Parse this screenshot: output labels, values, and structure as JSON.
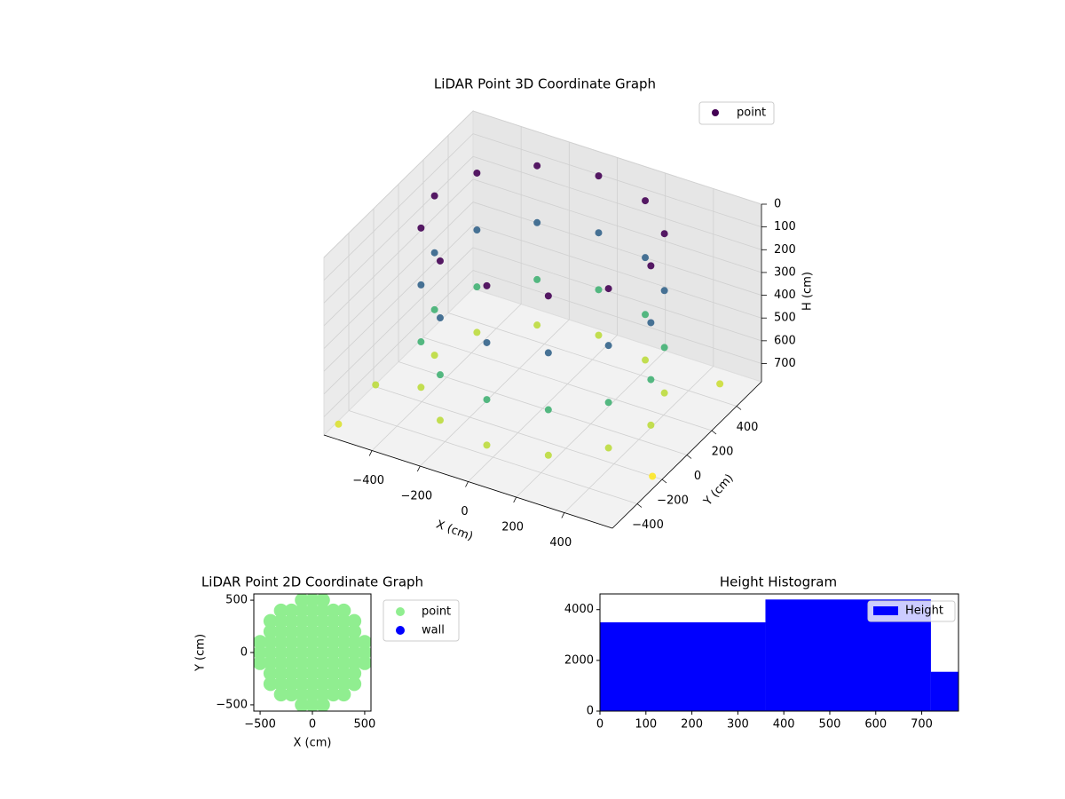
{
  "chart_data": [
    {
      "type": "scatter3d",
      "title": "LiDAR Point 3D Coordinate Graph",
      "xlabel": "X (cm)",
      "ylabel": "Y (cm)",
      "zlabel": "H (cm)",
      "xlim": [
        -600,
        600
      ],
      "ylim": [
        -600,
        600
      ],
      "zlim": [
        0,
        780
      ],
      "zinverted": true,
      "xticks": [
        {
          "value": -400,
          "label": "−400"
        },
        {
          "value": -200,
          "label": "−200"
        },
        0,
        200,
        400
      ],
      "yticks": [
        {
          "value": -400,
          "label": "−400"
        },
        {
          "value": -200,
          "label": "−200"
        },
        0,
        200,
        400
      ],
      "zticks": [
        0,
        100,
        200,
        300,
        400,
        500,
        600,
        700
      ],
      "legend": "upper right",
      "series": [
        {
          "name": "point",
          "color": "#440154",
          "colormap": "viridis",
          "x": [
            450,
            390,
            225,
            0,
            -225,
            -390,
            -450,
            -390,
            -225,
            0,
            225,
            390,
            450,
            390,
            225,
            0,
            -225,
            -390,
            -450,
            -390,
            -225,
            0,
            225,
            390,
            450,
            390,
            225,
            0,
            -225,
            -390,
            -450,
            -390,
            -225,
            0,
            225,
            390,
            450,
            390,
            225,
            0,
            -225,
            -390,
            -450,
            -390,
            -225,
            0,
            225,
            390,
            -560,
            -540,
            520,
            560
          ],
          "y": [
            0,
            225,
            390,
            450,
            390,
            225,
            0,
            -225,
            -390,
            -450,
            -390,
            -225,
            0,
            225,
            390,
            450,
            390,
            225,
            0,
            -225,
            -390,
            -450,
            -390,
            -225,
            0,
            225,
            390,
            450,
            390,
            225,
            0,
            -225,
            -390,
            -450,
            -390,
            -225,
            0,
            225,
            390,
            450,
            390,
            225,
            0,
            -225,
            -390,
            -450,
            -390,
            -225,
            -560,
            -300,
            420,
            -200
          ],
          "h": [
            700,
            700,
            700,
            700,
            700,
            700,
            700,
            700,
            700,
            700,
            700,
            700,
            500,
            500,
            500,
            500,
            500,
            500,
            500,
            500,
            500,
            500,
            500,
            500,
            250,
            250,
            250,
            250,
            250,
            250,
            250,
            250,
            250,
            250,
            250,
            250,
            0,
            0,
            0,
            0,
            0,
            0,
            0,
            0,
            0,
            0,
            0,
            0,
            740,
            700,
            720,
            780
          ]
        }
      ]
    },
    {
      "type": "scatter",
      "title": "LiDAR Point 2D Coordinate Graph",
      "xlabel": "X (cm)",
      "ylabel": "Y (cm)",
      "xlim": [
        -560,
        560
      ],
      "ylim": [
        -560,
        560
      ],
      "xticks": [
        {
          "value": -500,
          "label": "−500"
        },
        0,
        500
      ],
      "yticks": [
        {
          "value": -500,
          "label": "−500"
        },
        0,
        500
      ],
      "legend": "outside right",
      "series": [
        {
          "name": "point",
          "color": "#90ee90",
          "x": [
            -100,
            0,
            100,
            -300,
            -200,
            -100,
            0,
            100,
            200,
            300,
            -400,
            -300,
            -200,
            -100,
            0,
            100,
            200,
            300,
            400,
            -400,
            -300,
            -200,
            -100,
            0,
            100,
            200,
            300,
            400,
            -500,
            -400,
            -300,
            -200,
            -100,
            0,
            100,
            200,
            300,
            400,
            500,
            -500,
            -400,
            -300,
            -200,
            -100,
            0,
            100,
            200,
            300,
            400,
            500,
            -500,
            -400,
            -300,
            -200,
            -100,
            0,
            100,
            200,
            300,
            400,
            500,
            -400,
            -300,
            -200,
            -100,
            0,
            100,
            200,
            300,
            400,
            -400,
            -300,
            -200,
            -100,
            0,
            100,
            200,
            300,
            400,
            -300,
            -200,
            -100,
            0,
            100,
            200,
            300,
            -100,
            0,
            100
          ],
          "y": [
            500,
            500,
            500,
            400,
            400,
            400,
            400,
            400,
            400,
            400,
            300,
            300,
            300,
            300,
            300,
            300,
            300,
            300,
            300,
            200,
            200,
            200,
            200,
            200,
            200,
            200,
            200,
            200,
            100,
            100,
            100,
            100,
            100,
            100,
            100,
            100,
            100,
            100,
            100,
            0,
            0,
            0,
            0,
            0,
            0,
            0,
            0,
            0,
            0,
            0,
            -100,
            -100,
            -100,
            -100,
            -100,
            -100,
            -100,
            -100,
            -100,
            -100,
            -100,
            -200,
            -200,
            -200,
            -200,
            -200,
            -200,
            -200,
            -200,
            -200,
            -300,
            -300,
            -300,
            -300,
            -300,
            -300,
            -300,
            -300,
            -300,
            -400,
            -400,
            -400,
            -400,
            -400,
            -400,
            -400,
            -500,
            -500,
            -500
          ]
        },
        {
          "name": "wall",
          "color": "#0000ff",
          "x": [],
          "y": []
        }
      ]
    },
    {
      "type": "histogram",
      "title": "Height Histogram",
      "bins": [
        0,
        360,
        720,
        780
      ],
      "counts": [
        3500,
        4400,
        1550
      ],
      "xlim": [
        0,
        780
      ],
      "ylim": [
        0,
        4620
      ],
      "xticks": [
        0,
        100,
        200,
        300,
        400,
        500,
        600,
        700
      ],
      "yticks": [
        0,
        2000,
        4000
      ],
      "legend": "upper right",
      "series": [
        {
          "name": "Height",
          "color": "#0000ff"
        }
      ]
    }
  ]
}
